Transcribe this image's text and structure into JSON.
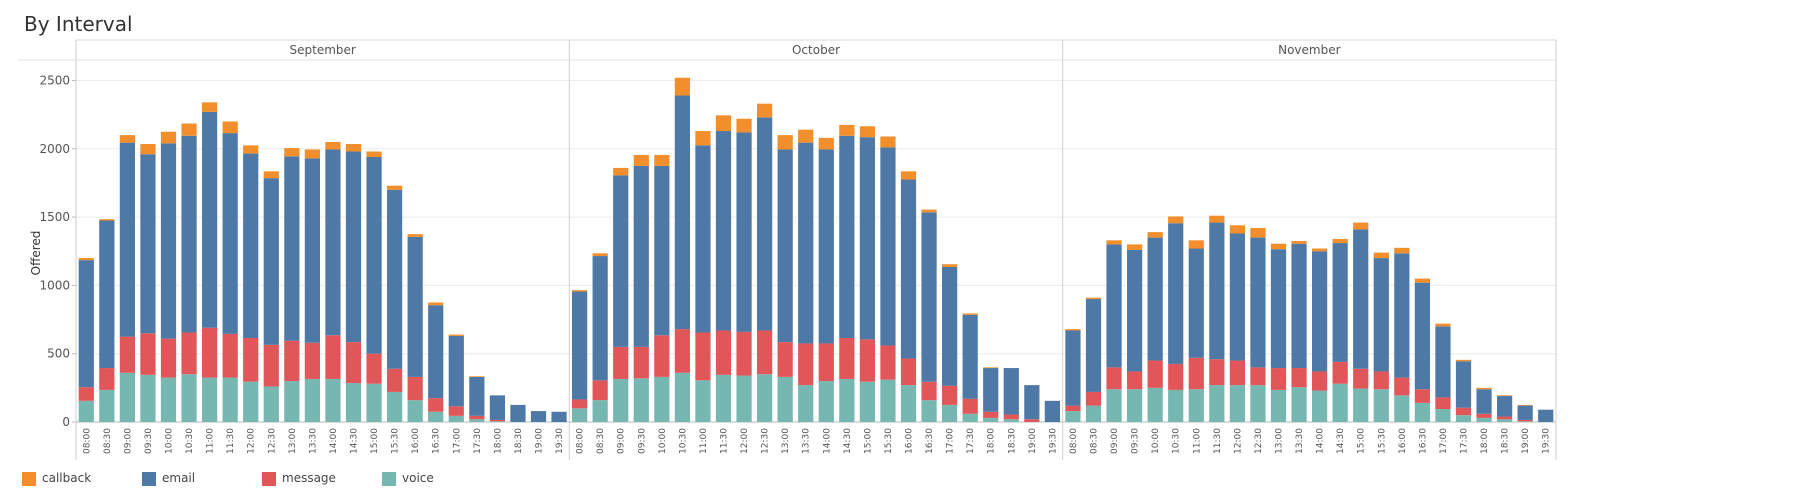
{
  "page": {
    "title": "By Interval"
  },
  "chart_data": {
    "type": "bar",
    "stacked": true,
    "ylabel": "Offered",
    "ylim": [
      0,
      2650
    ],
    "yticks": [
      0,
      500,
      1000,
      1500,
      2000,
      2500
    ],
    "grid": true,
    "legend_position": "bottom-left",
    "panels": [
      "September",
      "October",
      "November"
    ],
    "categories": [
      "08:00",
      "08:30",
      "09:00",
      "09:30",
      "10:00",
      "10:30",
      "11:00",
      "11:30",
      "12:00",
      "12:30",
      "13:00",
      "13:30",
      "14:00",
      "14:30",
      "15:00",
      "15:30",
      "16:00",
      "16:30",
      "17:00",
      "17:30",
      "18:00",
      "18:30",
      "19:00",
      "19:30"
    ],
    "series": [
      {
        "name": "voice",
        "color": "#76b7b2",
        "values": [
          [
            155,
            235,
            360,
            345,
            325,
            350,
            325,
            325,
            295,
            260,
            300,
            315,
            315,
            285,
            280,
            220,
            160,
            75,
            45,
            20,
            5,
            0,
            0,
            0
          ],
          [
            100,
            160,
            315,
            320,
            330,
            360,
            305,
            345,
            340,
            350,
            330,
            270,
            300,
            315,
            295,
            310,
            270,
            160,
            125,
            60,
            30,
            20,
            0,
            0
          ],
          [
            80,
            120,
            240,
            240,
            250,
            235,
            240,
            270,
            270,
            270,
            235,
            255,
            230,
            280,
            245,
            240,
            195,
            140,
            95,
            50,
            30,
            20,
            5,
            0
          ]
        ]
      },
      {
        "name": "message",
        "color": "#e15759",
        "values": [
          [
            100,
            160,
            265,
            305,
            285,
            305,
            365,
            320,
            320,
            305,
            295,
            265,
            320,
            300,
            220,
            170,
            170,
            100,
            70,
            25,
            10,
            0,
            0,
            0
          ],
          [
            65,
            145,
            235,
            230,
            305,
            320,
            350,
            325,
            320,
            320,
            255,
            305,
            275,
            300,
            310,
            250,
            195,
            135,
            140,
            110,
            45,
            35,
            20,
            0
          ],
          [
            40,
            100,
            160,
            130,
            200,
            190,
            230,
            190,
            180,
            130,
            160,
            140,
            140,
            160,
            145,
            130,
            130,
            100,
            85,
            55,
            30,
            20,
            10,
            0
          ]
        ]
      },
      {
        "name": "email",
        "color": "#4e79a7",
        "values": [
          [
            930,
            1080,
            1420,
            1310,
            1430,
            1440,
            1580,
            1470,
            1350,
            1220,
            1350,
            1350,
            1360,
            1395,
            1440,
            1310,
            1025,
            680,
            515,
            285,
            180,
            125,
            80,
            75
          ],
          [
            790,
            910,
            1255,
            1325,
            1240,
            1710,
            1370,
            1460,
            1460,
            1560,
            1410,
            1470,
            1420,
            1480,
            1480,
            1450,
            1310,
            1240,
            870,
            615,
            320,
            340,
            250,
            155
          ],
          [
            550,
            680,
            900,
            890,
            900,
            1030,
            800,
            1000,
            930,
            950,
            870,
            910,
            880,
            870,
            1020,
            830,
            910,
            780,
            520,
            340,
            180,
            150,
            105,
            90
          ]
        ]
      },
      {
        "name": "callback",
        "color": "#f28e2b",
        "values": [
          [
            15,
            10,
            55,
            75,
            85,
            90,
            70,
            85,
            60,
            50,
            60,
            65,
            55,
            55,
            40,
            30,
            20,
            20,
            10,
            5,
            0,
            0,
            0,
            0
          ],
          [
            10,
            20,
            55,
            80,
            80,
            130,
            105,
            115,
            100,
            100,
            105,
            95,
            85,
            80,
            80,
            80,
            60,
            20,
            20,
            10,
            5,
            0,
            0,
            0
          ],
          [
            10,
            10,
            30,
            40,
            40,
            50,
            60,
            50,
            60,
            70,
            40,
            20,
            20,
            30,
            50,
            40,
            40,
            30,
            20,
            10,
            10,
            5,
            5,
            0
          ]
        ]
      }
    ]
  }
}
